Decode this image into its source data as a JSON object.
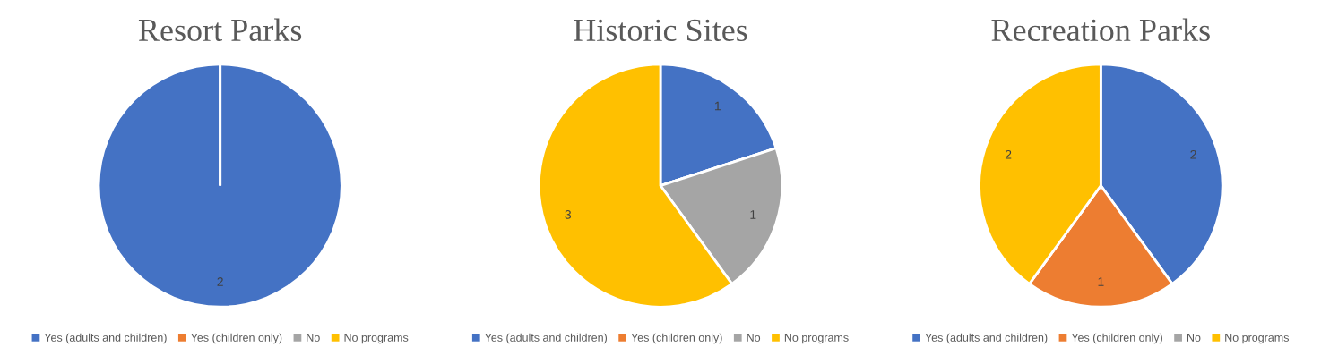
{
  "chart_data": [
    {
      "type": "pie",
      "title": "Resort Parks",
      "categories": [
        "Yes (adults and children)",
        "Yes (children only)",
        "No",
        "No programs"
      ],
      "values": [
        2,
        0,
        0,
        0
      ],
      "colors": [
        "#4472c4",
        "#ed7d31",
        "#a5a5a5",
        "#ffc000"
      ],
      "value_labels": [
        "2",
        null,
        null,
        null
      ],
      "legend": "bottom"
    },
    {
      "type": "pie",
      "title": "Historic Sites",
      "categories": [
        "Yes (adults and children)",
        "Yes (children only)",
        "No",
        "No programs"
      ],
      "values": [
        1,
        0,
        1,
        3
      ],
      "colors": [
        "#4472c4",
        "#ed7d31",
        "#a5a5a5",
        "#ffc000"
      ],
      "value_labels": [
        "1",
        null,
        "1",
        "3"
      ],
      "legend": "bottom"
    },
    {
      "type": "pie",
      "title": "Recreation Parks",
      "categories": [
        "Yes (adults and children)",
        "Yes (children only)",
        "No",
        "No programs"
      ],
      "values": [
        2,
        1,
        0,
        2
      ],
      "colors": [
        "#4472c4",
        "#ed7d31",
        "#a5a5a5",
        "#ffc000"
      ],
      "value_labels": [
        "2",
        "1",
        null,
        "2"
      ],
      "legend": "bottom"
    }
  ]
}
